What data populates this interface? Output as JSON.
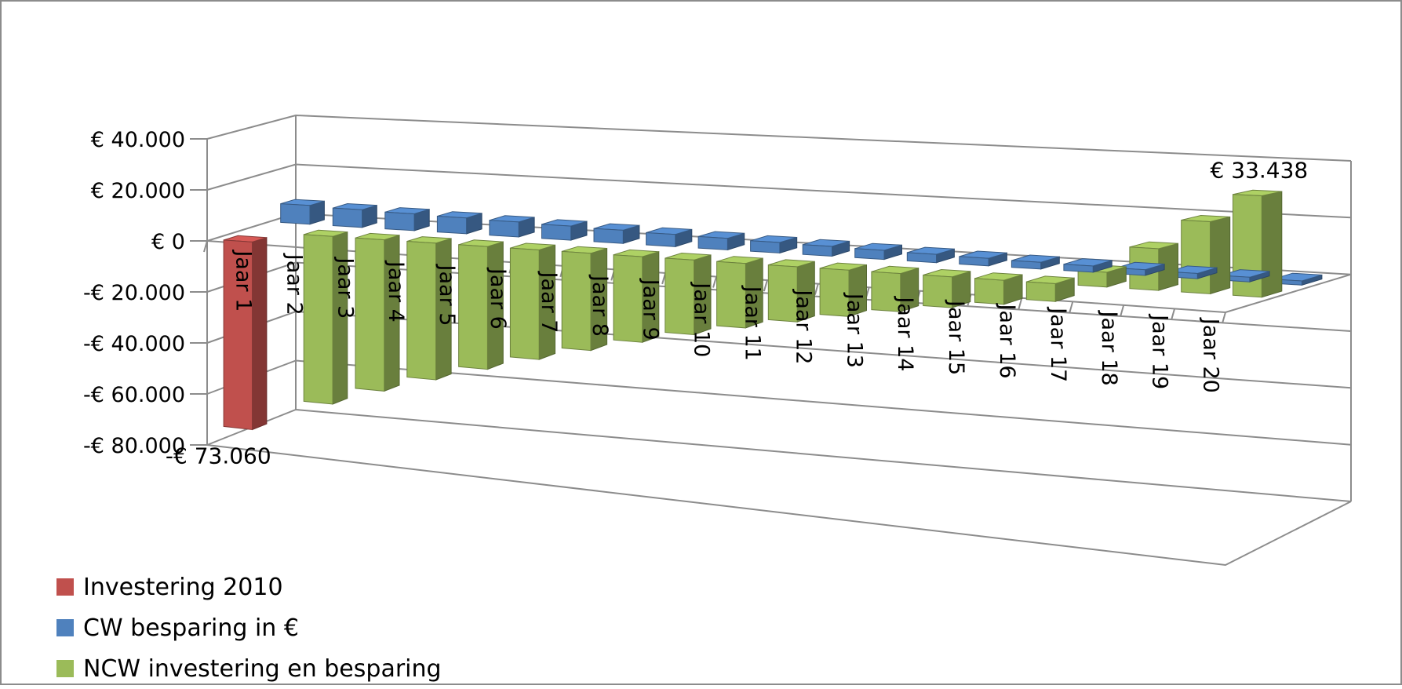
{
  "chart_data": {
    "type": "bar",
    "style": "3d-column",
    "categories": [
      "Jaar 1",
      "Jaar 2",
      "Jaar 3",
      "Jaar 4",
      "Jaar 5",
      "Jaar 6",
      "Jaar 7",
      "Jaar 8",
      "Jaar 9",
      "Jaar 10",
      "Jaar 11",
      "Jaar 12",
      "Jaar 13",
      "Jaar 14",
      "Jaar 15",
      "Jaar 16",
      "Jaar 17",
      "Jaar 18",
      "Jaar 19",
      "Jaar 20"
    ],
    "series": [
      {
        "name": "Investering 2010",
        "color": "#c0504d",
        "values": [
          -73060,
          null,
          null,
          null,
          null,
          null,
          null,
          null,
          null,
          null,
          null,
          null,
          null,
          null,
          null,
          null,
          null,
          null,
          null,
          null
        ]
      },
      {
        "name": "CW besparing in €",
        "color": "#4f81bd",
        "values": [
          7500,
          7000,
          6600,
          6200,
          5800,
          5400,
          5000,
          4600,
          4300,
          3900,
          3600,
          3300,
          3000,
          2700,
          2400,
          2200,
          2000,
          1800,
          1600,
          1400
        ]
      },
      {
        "name": "NCW investering en besparing",
        "color": "#9bbb59",
        "values": [
          null,
          -65500,
          -58500,
          -52300,
          -46500,
          -41100,
          -36100,
          -31500,
          -27200,
          -23300,
          -19700,
          -16400,
          -13400,
          -10700,
          -8300,
          -6100,
          5000,
          14000,
          24000,
          33438
        ]
      }
    ],
    "data_labels": [
      {
        "text": "-€ 73.060",
        "series": 0,
        "category": 0
      },
      {
        "text": "€ 33.438",
        "series": 2,
        "category": 19
      }
    ],
    "yaxis": {
      "ylim": [
        -80000,
        40000
      ],
      "ticks": [
        40000,
        20000,
        0,
        -20000,
        -40000,
        -60000,
        -80000
      ],
      "tick_labels": [
        "€ 40.000",
        "€ 20.000",
        "€ 0",
        "-€ 20.000",
        "-€ 40.000",
        "-€ 60.000",
        "-€ 80.000"
      ]
    },
    "grid": true,
    "legend_position": "bottom-left",
    "title": "",
    "xlabel": "",
    "ylabel": ""
  },
  "legend": [
    {
      "label": "Investering 2010",
      "color": "#c0504d"
    },
    {
      "label": "CW besparing in €",
      "color": "#4f81bd"
    },
    {
      "label": "NCW investering en besparing",
      "color": "#9bbb59"
    }
  ]
}
